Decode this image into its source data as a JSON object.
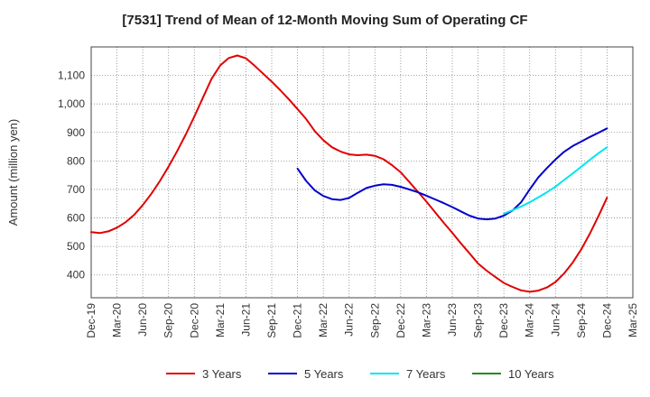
{
  "chart_data": {
    "type": "line",
    "title": "[7531]  Trend of Mean of 12-Month Moving Sum of Operating CF",
    "xlabel": "",
    "ylabel": "Amount (million yen)",
    "ylim": [
      320,
      1200
    ],
    "y_ticks": [
      400,
      500,
      600,
      700,
      800,
      900,
      1000,
      1100
    ],
    "y_tick_labels": [
      "400",
      "500",
      "600",
      "700",
      "800",
      "900",
      "1,000",
      "1,100"
    ],
    "x_tick_labels": [
      "Dec-19",
      "Mar-20",
      "Jun-20",
      "Sep-20",
      "Dec-20",
      "Mar-21",
      "Jun-21",
      "Sep-21",
      "Dec-21",
      "Mar-22",
      "Jun-22",
      "Sep-22",
      "Dec-22",
      "Mar-23",
      "Jun-23",
      "Sep-23",
      "Dec-23",
      "Mar-24",
      "Jun-24",
      "Sep-24",
      "Dec-24",
      "Mar-25"
    ],
    "grid": true,
    "legend_position": "bottom",
    "series": [
      {
        "name": "3 Years",
        "color": "#e00000",
        "x": [
          "Dec-19",
          "Jan-20",
          "Feb-20",
          "Mar-20",
          "Apr-20",
          "May-20",
          "Jun-20",
          "Jul-20",
          "Aug-20",
          "Sep-20",
          "Oct-20",
          "Nov-20",
          "Dec-20",
          "Jan-21",
          "Feb-21",
          "Mar-21",
          "Apr-21",
          "May-21",
          "Jun-21",
          "Jul-21",
          "Aug-21",
          "Sep-21",
          "Oct-21",
          "Nov-21",
          "Dec-21",
          "Jan-22",
          "Feb-22",
          "Mar-22",
          "Apr-22",
          "May-22",
          "Jun-22",
          "Jul-22",
          "Aug-22",
          "Sep-22",
          "Oct-22",
          "Nov-22",
          "Dec-22",
          "Jan-23",
          "Feb-23",
          "Mar-23",
          "Apr-23",
          "May-23",
          "Jun-23",
          "Jul-23",
          "Aug-23",
          "Sep-23",
          "Oct-23",
          "Nov-23",
          "Dec-23",
          "Jan-24",
          "Feb-24",
          "Mar-24",
          "Apr-24",
          "May-24",
          "Jun-24",
          "Jul-24",
          "Aug-24",
          "Sep-24",
          "Oct-24",
          "Nov-24",
          "Dec-24"
        ],
        "values": [
          550,
          547,
          553,
          566,
          585,
          611,
          645,
          685,
          730,
          780,
          834,
          893,
          956,
          1022,
          1088,
          1135,
          1161,
          1170,
          1160,
          1134,
          1106,
          1078,
          1048,
          1016,
          982,
          947,
          905,
          873,
          848,
          833,
          823,
          820,
          822,
          818,
          806,
          785,
          760,
          726,
          692,
          657,
          620,
          583,
          548,
          511,
          476,
          440,
          415,
          393,
          372,
          358,
          346,
          341,
          345,
          356,
          375,
          405,
          443,
          490,
          545,
          606,
          671
        ]
      },
      {
        "name": "5 Years",
        "color": "#0000cc",
        "x": [
          "Dec-21",
          "Jan-22",
          "Feb-22",
          "Mar-22",
          "Apr-22",
          "May-22",
          "Jun-22",
          "Jul-22",
          "Aug-22",
          "Sep-22",
          "Oct-22",
          "Nov-22",
          "Dec-22",
          "Jan-23",
          "Feb-23",
          "Mar-23",
          "Apr-23",
          "May-23",
          "Jun-23",
          "Jul-23",
          "Aug-23",
          "Sep-23",
          "Oct-23",
          "Nov-23",
          "Dec-23",
          "Jan-24",
          "Feb-24",
          "Mar-24",
          "Apr-24",
          "May-24",
          "Jun-24",
          "Jul-24",
          "Aug-24",
          "Sep-24",
          "Oct-24",
          "Nov-24",
          "Dec-24"
        ],
        "values": [
          773,
          730,
          697,
          677,
          666,
          663,
          670,
          688,
          705,
          713,
          718,
          716,
          709,
          700,
          690,
          678,
          665,
          652,
          638,
          623,
          608,
          598,
          595,
          598,
          608,
          626,
          655,
          700,
          742,
          775,
          805,
          832,
          852,
          868,
          884,
          899,
          914
        ]
      },
      {
        "name": "7 Years",
        "color": "#00e5ee",
        "x": [
          "Dec-23",
          "Jan-24",
          "Feb-24",
          "Mar-24",
          "Apr-24",
          "May-24",
          "Jun-24",
          "Jul-24",
          "Aug-24",
          "Sep-24",
          "Oct-24",
          "Nov-24",
          "Dec-24"
        ],
        "values": [
          615,
          627,
          640,
          655,
          672,
          690,
          710,
          733,
          756,
          780,
          804,
          827,
          848
        ]
      },
      {
        "name": "10 Years",
        "color": "#228b22",
        "x": [],
        "values": []
      }
    ]
  }
}
